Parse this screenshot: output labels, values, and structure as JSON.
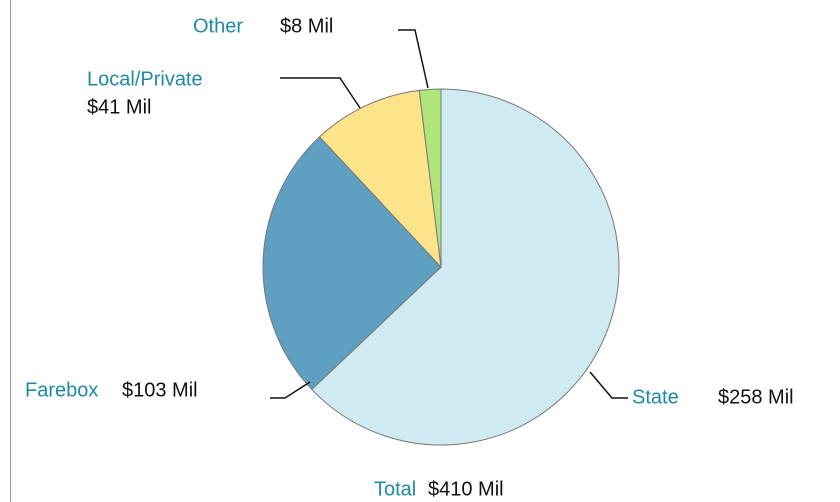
{
  "chart_data": {
    "type": "pie",
    "categories": [
      "State",
      "Farebox",
      "Local/Private",
      "Other"
    ],
    "values": [
      258,
      103,
      41,
      8
    ],
    "value_labels": [
      "$258 Mil",
      "$103 Mil",
      "$41 Mil",
      "$8 Mil"
    ],
    "colors": [
      "#cfeaf0",
      "#5fa0c2",
      "#fde48a",
      "#b0e57c"
    ],
    "total_name": "Total",
    "total_value_label": "$410 Mil"
  }
}
